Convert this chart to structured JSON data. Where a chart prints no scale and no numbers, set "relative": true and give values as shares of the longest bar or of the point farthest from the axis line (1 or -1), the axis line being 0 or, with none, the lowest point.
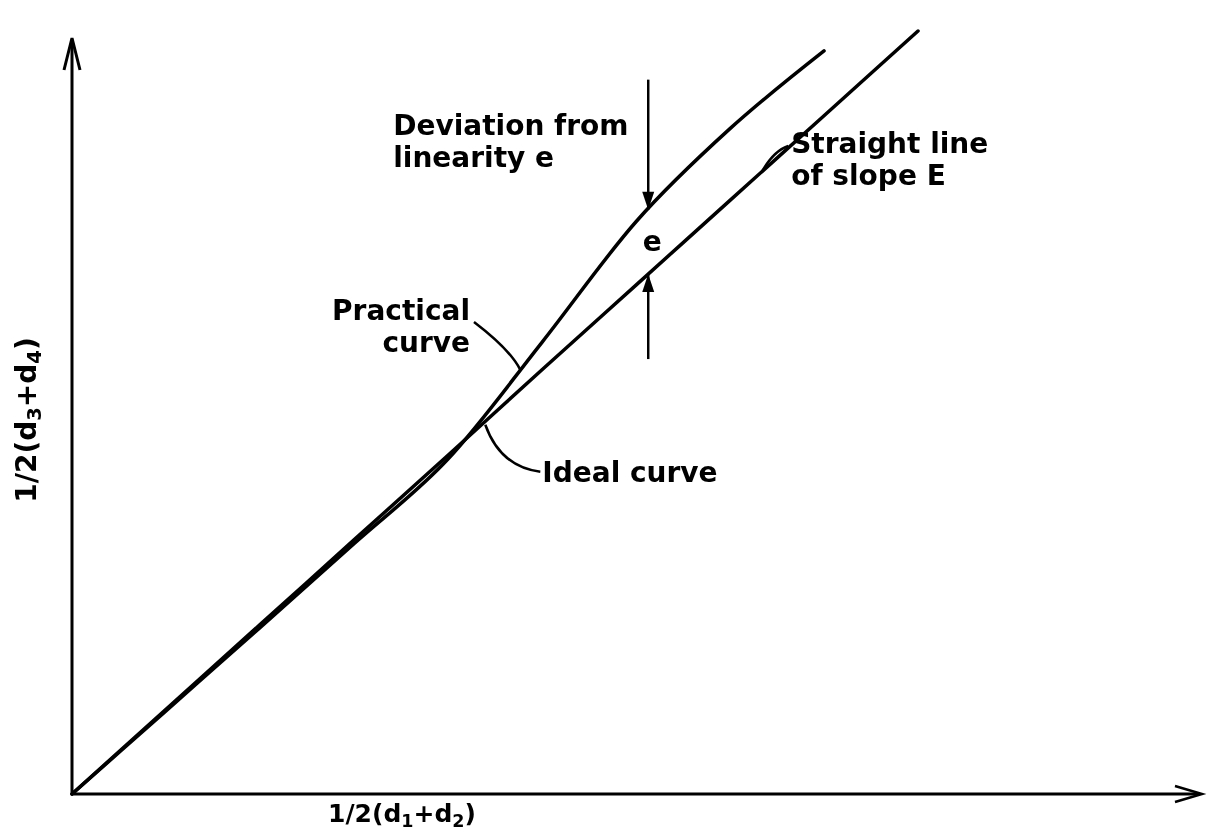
{
  "chart_data": {
    "type": "line",
    "relative": true,
    "xlabel": "1/2(d$_{1}$+d$_{2}$)",
    "ylabel": "1/2(d$_{3}$+d$_{4}$)",
    "line_style": "solid",
    "categories": [
      null,
      null,
      null,
      null,
      null,
      null,
      null,
      null,
      null,
      null,
      null,
      null,
      null
    ],
    "series": [
      {
        "name": "Practical curve",
        "color": "#000000",
        "values": [
          0,
          0.109,
          0.218,
          0.328,
          0.439,
          0.592,
          0.75,
          0.872,
          0.974,
          null,
          null,
          null,
          null
        ]
      },
      {
        "name": "Straight line of slope E",
        "color": "#000000",
        "values": [
          0,
          0.111,
          0.222,
          0.333,
          0.444,
          0.556,
          0.667,
          0.778,
          0.889,
          1,
          null,
          null,
          null
        ]
      }
    ],
    "annotations": [
      "Deviation from linearity e",
      "e",
      "Ideal curve"
    ]
  }
}
